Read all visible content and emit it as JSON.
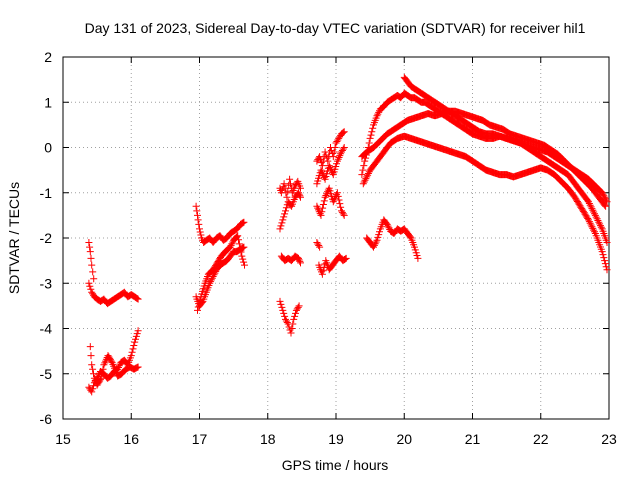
{
  "chart_data": {
    "type": "scatter",
    "title": "Day 131 of 2023, Sidereal Day-to-day VTEC variation (SDTVAR) for receiver hil1",
    "xlabel": "GPS time / hours",
    "ylabel": "SDTVAR / TECUs",
    "xlim": [
      15,
      23
    ],
    "ylim": [
      -6,
      2
    ],
    "grid": true,
    "x_ticks": [
      "15",
      "16",
      "17",
      "18",
      "19",
      "20",
      "21",
      "22",
      "23"
    ],
    "y_ticks": [
      "-6",
      "-5",
      "-4",
      "-3",
      "-2",
      "-1",
      "0",
      "1",
      "2"
    ],
    "marker": "+",
    "color": "#ff0000",
    "series": [
      {
        "name": "s1",
        "x": [
          15.38,
          15.42,
          15.46,
          15.5,
          15.55,
          15.6,
          15.65,
          15.7,
          15.75,
          15.8,
          15.85,
          15.9,
          15.95,
          16.0,
          16.05,
          16.1
        ],
        "y": [
          -3.0,
          -3.2,
          -3.3,
          -3.35,
          -3.4,
          -3.35,
          -3.45,
          -3.4,
          -3.35,
          -3.3,
          -3.25,
          -3.2,
          -3.3,
          -3.25,
          -3.3,
          -3.35
        ]
      },
      {
        "name": "s2",
        "x": [
          15.38,
          15.4,
          15.42,
          15.45
        ],
        "y": [
          -2.1,
          -2.3,
          -2.6,
          -2.9
        ]
      },
      {
        "name": "s3",
        "x": [
          15.38,
          15.42,
          15.46,
          15.5,
          15.55,
          15.6,
          15.65,
          15.7,
          15.75,
          15.8,
          15.85,
          15.9,
          15.95,
          16.0,
          16.05,
          16.1
        ],
        "y": [
          -5.3,
          -5.4,
          -5.2,
          -5.1,
          -4.95,
          -5.0,
          -5.1,
          -5.05,
          -4.95,
          -4.9,
          -4.75,
          -4.7,
          -4.8,
          -4.6,
          -4.3,
          -4.05
        ]
      },
      {
        "name": "s4",
        "x": [
          15.4,
          15.42,
          15.46,
          15.5,
          15.56,
          15.6,
          15.66,
          15.72,
          15.8,
          15.86,
          15.92,
          15.98,
          16.04,
          16.1
        ],
        "y": [
          -4.4,
          -4.8,
          -5.1,
          -5.25,
          -5.1,
          -4.8,
          -4.6,
          -4.75,
          -5.05,
          -5.0,
          -4.9,
          -4.85,
          -4.9,
          -4.85
        ]
      },
      {
        "name": "s5",
        "x": [
          16.95,
          16.97,
          17.0,
          17.03,
          17.06,
          17.1,
          17.15,
          17.2,
          17.25,
          17.3,
          17.35,
          17.4,
          17.45,
          17.5,
          17.55,
          17.6,
          17.65
        ],
        "y": [
          -1.3,
          -1.5,
          -1.8,
          -2.0,
          -2.1,
          -2.05,
          -2.0,
          -2.1,
          -2.0,
          -1.95,
          -2.05,
          -2.0,
          -1.9,
          -1.85,
          -1.8,
          -1.7,
          -1.65
        ]
      },
      {
        "name": "s6",
        "x": [
          16.95,
          17.0,
          17.05,
          17.1,
          17.15,
          17.2,
          17.25,
          17.3,
          17.35,
          17.4,
          17.45,
          17.5,
          17.55,
          17.6,
          17.65
        ],
        "y": [
          -3.3,
          -3.5,
          -3.4,
          -3.2,
          -3.0,
          -2.85,
          -2.7,
          -2.6,
          -2.55,
          -2.5,
          -2.4,
          -2.3,
          -2.3,
          -2.25,
          -2.2
        ]
      },
      {
        "name": "s7",
        "x": [
          16.97,
          17.02,
          17.08,
          17.13,
          17.2,
          17.26,
          17.32,
          17.38,
          17.45,
          17.5,
          17.56,
          17.62,
          17.66
        ],
        "y": [
          -3.6,
          -3.3,
          -3.0,
          -2.8,
          -2.7,
          -2.55,
          -2.4,
          -2.3,
          -2.2,
          -2.05,
          -1.95,
          -2.4,
          -2.6
        ]
      },
      {
        "name": "s8",
        "x": [
          18.18,
          18.2,
          18.24,
          18.28,
          18.32,
          18.36,
          18.4,
          18.44,
          18.48
        ],
        "y": [
          -0.9,
          -1.0,
          -0.8,
          -1.1,
          -0.7,
          -1.0,
          -0.85,
          -0.75,
          -0.9
        ]
      },
      {
        "name": "s9",
        "x": [
          18.18,
          18.22,
          18.26,
          18.3,
          18.35,
          18.4,
          18.45,
          18.48
        ],
        "y": [
          -1.8,
          -1.6,
          -1.4,
          -1.2,
          -1.3,
          -1.1,
          -1.0,
          -1.1
        ]
      },
      {
        "name": "s10",
        "x": [
          18.2,
          18.25,
          18.3,
          18.35,
          18.4,
          18.45,
          18.48
        ],
        "y": [
          -2.4,
          -2.5,
          -2.45,
          -2.5,
          -2.4,
          -2.45,
          -2.55
        ]
      },
      {
        "name": "s11",
        "x": [
          18.18,
          18.22,
          18.26,
          18.3,
          18.34,
          18.38,
          18.42,
          18.46
        ],
        "y": [
          -3.4,
          -3.6,
          -3.8,
          -3.9,
          -4.1,
          -3.8,
          -3.6,
          -3.5
        ]
      },
      {
        "name": "s12",
        "x": [
          18.72,
          18.76,
          18.8,
          18.84,
          18.88,
          18.92,
          18.96,
          19.0,
          19.04,
          19.08,
          19.12
        ],
        "y": [
          -0.3,
          -0.2,
          -0.4,
          -0.1,
          -0.3,
          0.0,
          -0.2,
          0.1,
          0.2,
          0.3,
          0.35
        ]
      },
      {
        "name": "s13",
        "x": [
          18.72,
          18.78,
          18.84,
          18.9,
          18.96,
          19.02,
          19.08,
          19.12
        ],
        "y": [
          -0.8,
          -0.5,
          -0.7,
          -0.4,
          -0.6,
          -0.3,
          -0.1,
          0.0
        ]
      },
      {
        "name": "s14",
        "x": [
          18.72,
          18.78,
          18.84,
          18.9,
          18.96,
          19.02,
          19.08,
          19.12
        ],
        "y": [
          -1.3,
          -1.5,
          -1.1,
          -0.9,
          -1.2,
          -1.0,
          -1.4,
          -1.5
        ]
      },
      {
        "name": "s15",
        "x": [
          18.75,
          18.8,
          18.85,
          18.9,
          18.95,
          19.0,
          19.05,
          19.1,
          19.15
        ],
        "y": [
          -2.6,
          -2.8,
          -2.5,
          -2.7,
          -2.6,
          -2.5,
          -2.4,
          -2.5,
          -2.45
        ]
      },
      {
        "name": "s16",
        "x": [
          18.72,
          18.76
        ],
        "y": [
          -2.1,
          -2.2
        ]
      },
      {
        "name": "s17",
        "x": [
          19.38,
          19.42,
          19.46,
          19.5,
          19.55,
          19.6,
          19.65,
          19.7,
          19.75,
          19.8,
          19.85,
          19.9,
          19.95,
          20.0,
          20.05,
          20.1,
          20.15,
          20.2,
          20.25,
          20.3,
          20.35,
          20.4,
          20.45,
          20.5,
          20.55,
          20.6,
          20.65,
          20.7,
          20.75,
          20.8,
          20.85,
          20.9,
          20.95,
          21.0,
          21.1,
          21.2,
          21.3,
          21.4,
          21.5,
          21.6,
          21.7,
          21.8,
          21.9,
          22.0,
          22.1,
          22.2,
          22.3,
          22.4,
          22.5,
          22.6,
          22.7,
          22.8,
          22.9,
          22.97
        ],
        "y": [
          -0.6,
          -0.3,
          -0.1,
          0.2,
          0.5,
          0.7,
          0.85,
          0.9,
          1.0,
          1.05,
          1.1,
          1.15,
          1.1,
          1.2,
          1.15,
          1.1,
          1.1,
          1.05,
          1.0,
          1.0,
          0.95,
          0.9,
          0.85,
          0.8,
          0.75,
          0.7,
          0.65,
          0.6,
          0.55,
          0.5,
          0.45,
          0.4,
          0.35,
          0.3,
          0.25,
          0.2,
          0.2,
          0.25,
          0.2,
          0.15,
          0.1,
          0.05,
          0.0,
          -0.05,
          -0.1,
          -0.2,
          -0.3,
          -0.4,
          -0.5,
          -0.6,
          -0.7,
          -0.85,
          -1.0,
          -1.2
        ]
      },
      {
        "name": "s18",
        "x": [
          20.0,
          20.05,
          20.1,
          20.15,
          20.2,
          20.25,
          20.3,
          20.35,
          20.4,
          20.45,
          20.5,
          20.6,
          20.7,
          20.8,
          20.9,
          21.0,
          21.1,
          21.2,
          21.3,
          21.4,
          21.5,
          21.6,
          21.7,
          21.8,
          21.9,
          22.0,
          22.1,
          22.2,
          22.3,
          22.4,
          22.5,
          22.6,
          22.7,
          22.8,
          22.9,
          22.97
        ],
        "y": [
          1.55,
          1.45,
          1.35,
          1.3,
          1.25,
          1.2,
          1.15,
          1.1,
          1.05,
          1.0,
          0.95,
          0.85,
          0.75,
          0.65,
          0.55,
          0.45,
          0.35,
          0.3,
          0.3,
          0.25,
          0.2,
          0.15,
          0.1,
          0.0,
          -0.1,
          -0.2,
          -0.3,
          -0.4,
          -0.5,
          -0.6,
          -0.8,
          -1.0,
          -1.2,
          -1.5,
          -1.8,
          -2.1
        ]
      },
      {
        "name": "s19",
        "x": [
          19.38,
          19.45,
          19.55,
          19.65,
          19.75,
          19.85,
          19.95,
          20.05,
          20.15,
          20.25,
          20.35,
          20.45,
          20.55,
          20.65,
          20.75,
          20.85,
          20.95,
          21.05,
          21.15,
          21.25,
          21.35,
          21.45,
          21.55,
          21.65,
          21.75,
          21.85,
          21.95,
          22.05,
          22.15,
          22.25,
          22.35,
          22.45,
          22.55,
          22.65,
          22.75,
          22.85,
          22.95
        ],
        "y": [
          -0.2,
          -0.1,
          0.0,
          0.15,
          0.3,
          0.4,
          0.5,
          0.6,
          0.65,
          0.7,
          0.75,
          0.7,
          0.75,
          0.8,
          0.8,
          0.75,
          0.7,
          0.65,
          0.6,
          0.5,
          0.45,
          0.4,
          0.3,
          0.25,
          0.2,
          0.15,
          0.1,
          0.05,
          -0.05,
          -0.15,
          -0.3,
          -0.45,
          -0.6,
          -0.75,
          -0.9,
          -1.1,
          -1.3
        ]
      },
      {
        "name": "s20",
        "x": [
          19.4,
          19.5,
          19.6,
          19.7,
          19.8,
          19.9,
          20.0,
          20.1,
          20.2,
          20.3,
          20.4,
          20.5,
          20.6,
          20.7,
          20.8,
          20.9,
          21.0,
          21.1,
          21.2,
          21.3,
          21.4,
          21.5,
          21.6,
          21.7,
          21.8,
          21.9,
          22.0,
          22.1,
          22.2,
          22.3,
          22.4,
          22.5,
          22.6,
          22.7,
          22.8,
          22.9,
          22.97
        ],
        "y": [
          -0.8,
          -0.5,
          -0.3,
          -0.1,
          0.1,
          0.2,
          0.25,
          0.2,
          0.15,
          0.1,
          0.05,
          0.0,
          -0.05,
          -0.1,
          -0.15,
          -0.2,
          -0.3,
          -0.4,
          -0.5,
          -0.55,
          -0.6,
          -0.6,
          -0.65,
          -0.6,
          -0.55,
          -0.5,
          -0.45,
          -0.5,
          -0.6,
          -0.75,
          -0.9,
          -1.1,
          -1.35,
          -1.6,
          -1.9,
          -2.3,
          -2.7
        ]
      },
      {
        "name": "s21",
        "x": [
          19.45,
          19.5,
          19.55,
          19.6,
          19.65,
          19.7,
          19.75,
          19.8,
          19.85,
          19.9,
          19.95,
          20.0,
          20.05,
          20.1,
          20.15,
          20.2
        ],
        "y": [
          -2.0,
          -2.1,
          -2.2,
          -2.05,
          -1.8,
          -1.6,
          -1.7,
          -1.85,
          -1.9,
          -1.8,
          -1.85,
          -1.8,
          -1.9,
          -2.0,
          -2.2,
          -2.45
        ]
      }
    ]
  }
}
